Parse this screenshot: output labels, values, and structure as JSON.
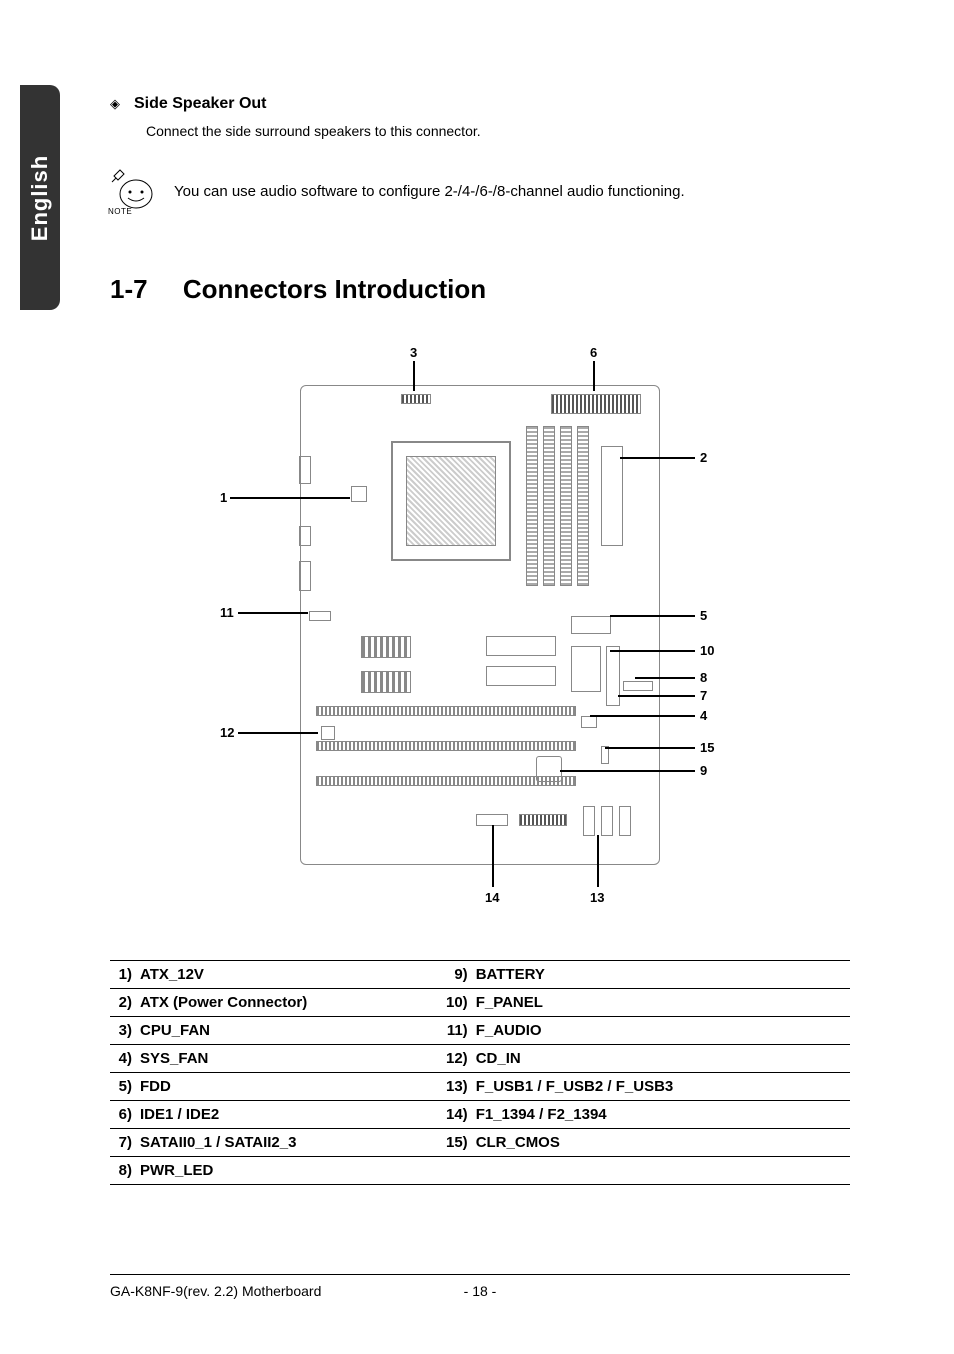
{
  "side_tab": "English",
  "speaker": {
    "title": "Side Speaker Out",
    "desc": "Connect the side surround speakers to this connector."
  },
  "note": {
    "label": "NOTE",
    "text": "You can use audio software to configure 2-/4-/6-/8-channel audio functioning."
  },
  "section": {
    "num": "1-7",
    "title": "Connectors Introduction"
  },
  "diagram": {
    "labels": {
      "l1": "1",
      "l2": "2",
      "l3": "3",
      "l4": "4",
      "l5": "5",
      "l6": "6",
      "l7": "7",
      "l8": "8",
      "l9": "9",
      "l10": "10",
      "l11": "11",
      "l12": "12",
      "l13": "13",
      "l14": "14",
      "l15": "15"
    }
  },
  "connectors": {
    "left": [
      {
        "n": "1)",
        "name": "ATX_12V"
      },
      {
        "n": "2)",
        "name": "ATX (Power Connector)"
      },
      {
        "n": "3)",
        "name": "CPU_FAN"
      },
      {
        "n": "4)",
        "name": "SYS_FAN"
      },
      {
        "n": "5)",
        "name": "FDD"
      },
      {
        "n": "6)",
        "name": "IDE1 / IDE2"
      },
      {
        "n": "7)",
        "name": "SATAII0_1 / SATAII2_3"
      },
      {
        "n": "8)",
        "name": "PWR_LED"
      }
    ],
    "right": [
      {
        "n": "9)",
        "name": "BATTERY"
      },
      {
        "n": "10)",
        "name": "F_PANEL"
      },
      {
        "n": "11)",
        "name": "F_AUDIO"
      },
      {
        "n": "12)",
        "name": "CD_IN"
      },
      {
        "n": "13)",
        "name": "F_USB1 / F_USB2 / F_USB3"
      },
      {
        "n": "14)",
        "name": "F1_1394 / F2_1394"
      },
      {
        "n": "15)",
        "name": "CLR_CMOS"
      },
      {
        "n": "",
        "name": ""
      }
    ]
  },
  "footer": {
    "left": "GA-K8NF-9(rev. 2.2) Motherboard",
    "center": "- 18 -"
  }
}
